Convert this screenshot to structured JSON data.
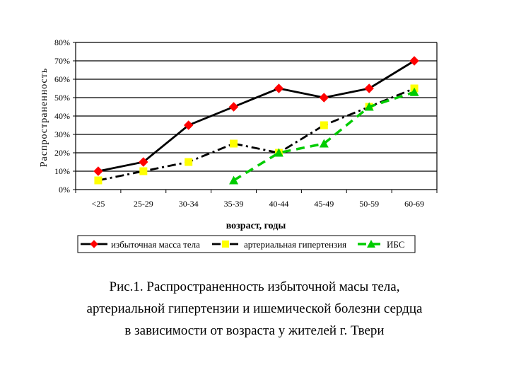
{
  "chart_data": {
    "type": "line",
    "categories": [
      "<25",
      "25-29",
      "30-34",
      "35-39",
      "40-44",
      "45-49",
      "50-59",
      "60-69"
    ],
    "series": [
      {
        "name": "избыточная масса тела",
        "values": [
          10,
          15,
          35,
          45,
          55,
          50,
          55,
          70
        ],
        "color": "#000000",
        "marker": "diamond",
        "marker_color": "#ff0000",
        "line": "solid"
      },
      {
        "name": "артериальная гипертензия",
        "values": [
          5,
          10,
          15,
          25,
          20,
          35,
          45,
          55
        ],
        "color": "#000000",
        "marker": "square",
        "marker_color": "#ffff00",
        "line": "dashdot"
      },
      {
        "name": "ИБС",
        "values": [
          null,
          null,
          null,
          5,
          20,
          25,
          45,
          53
        ],
        "color": "#00cc00",
        "marker": "triangle",
        "marker_color": "#00cc00",
        "line": "dashed"
      }
    ],
    "yticks": [
      "0%",
      "10%",
      "20%",
      "30%",
      "40%",
      "50%",
      "60%",
      "70%",
      "80%"
    ],
    "ylim": [
      0,
      80
    ],
    "xlabel": "возраст, годы",
    "ylabel": "Распространенность",
    "grid": true,
    "legend": "bottom"
  },
  "caption": {
    "line1": "Рис.1. Распространенность избыточной масы тела,",
    "line2": "артериальной гипертензии и ишемической болезни сердца",
    "line3": "в зависимости от возраста у жителей г. Твери"
  }
}
